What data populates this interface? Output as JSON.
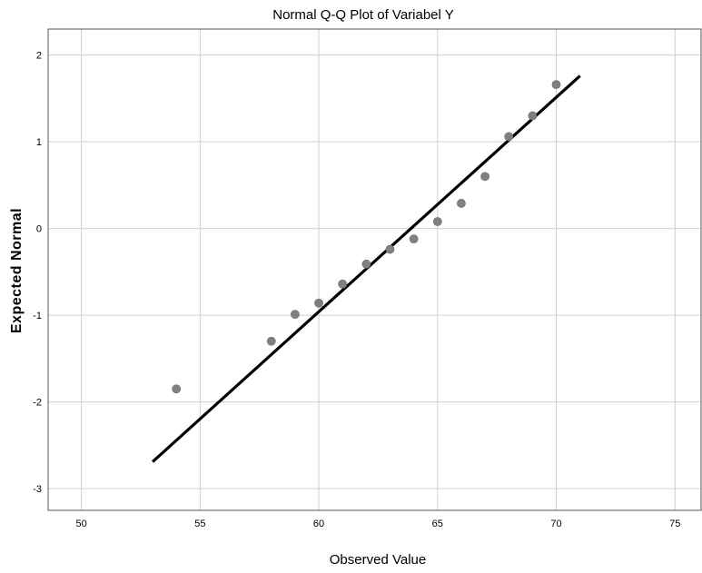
{
  "chart_data": {
    "type": "scatter",
    "title": "Normal Q-Q Plot of Variabel Y",
    "xlabel": "Observed Value",
    "ylabel": "Expected Normal",
    "xlim": [
      48.6,
      76.1
    ],
    "ylim": [
      -3.25,
      2.3
    ],
    "x_ticks": [
      50,
      55,
      60,
      65,
      70,
      75
    ],
    "y_ticks": [
      2,
      1,
      0,
      -1,
      -2,
      -3
    ],
    "grid": true,
    "point_color": "#808080",
    "line_color": "#000000",
    "points": [
      {
        "x": 54,
        "y": -1.85
      },
      {
        "x": 58,
        "y": -1.3
      },
      {
        "x": 59,
        "y": -0.99
      },
      {
        "x": 60,
        "y": -0.86
      },
      {
        "x": 61,
        "y": -0.64
      },
      {
        "x": 62,
        "y": -0.41
      },
      {
        "x": 63,
        "y": -0.24
      },
      {
        "x": 64,
        "y": -0.12
      },
      {
        "x": 65,
        "y": 0.08
      },
      {
        "x": 66,
        "y": 0.29
      },
      {
        "x": 67,
        "y": 0.6
      },
      {
        "x": 68,
        "y": 1.06
      },
      {
        "x": 69,
        "y": 1.3
      },
      {
        "x": 70,
        "y": 1.66
      }
    ],
    "reference_line": {
      "x": [
        53,
        71
      ],
      "y": [
        -2.69,
        1.76
      ]
    }
  }
}
